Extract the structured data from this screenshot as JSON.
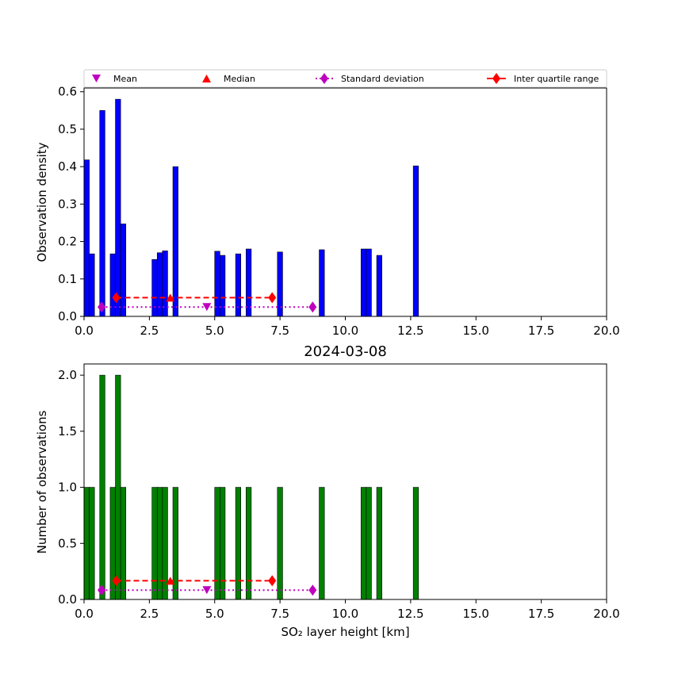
{
  "legend": [
    {
      "label": "Mean",
      "color": "#bf00bf",
      "marker": "triangle-down",
      "line": "none"
    },
    {
      "label": "Median",
      "color": "#ff0000",
      "marker": "triangle-up",
      "line": "none"
    },
    {
      "label": "Standard deviation",
      "color": "#bf00bf",
      "marker": "diamond",
      "line": "dotted"
    },
    {
      "label": "Inter quartile range",
      "color": "#ff0000",
      "marker": "diamond",
      "line": "solid"
    }
  ],
  "chart_data": [
    {
      "type": "bar",
      "title": "",
      "xlabel": "",
      "ylabel": "Observation density",
      "xlim": [
        0,
        20
      ],
      "ylim": [
        0,
        0.61
      ],
      "xticks": [
        "0.0",
        "2.5",
        "5.0",
        "7.5",
        "10.0",
        "12.5",
        "15.0",
        "17.5",
        "20.0"
      ],
      "yticks": [
        0,
        0.1,
        0.2,
        0.3,
        0.4,
        0.5,
        0.6
      ],
      "ytick_labels": [
        "0.0",
        "0.1",
        "0.2",
        "0.3",
        "0.4",
        "0.5",
        "0.6"
      ],
      "bar_color": "#0000ff",
      "bar_width": 0.2,
      "bars": [
        {
          "x": 0.1,
          "value": 0.418
        },
        {
          "x": 0.3,
          "value": 0.167
        },
        {
          "x": 0.7,
          "value": 0.55
        },
        {
          "x": 1.1,
          "value": 0.167
        },
        {
          "x": 1.3,
          "value": 0.58
        },
        {
          "x": 1.5,
          "value": 0.247
        },
        {
          "x": 2.7,
          "value": 0.152
        },
        {
          "x": 2.9,
          "value": 0.17
        },
        {
          "x": 3.1,
          "value": 0.175
        },
        {
          "x": 3.5,
          "value": 0.4
        },
        {
          "x": 5.1,
          "value": 0.174
        },
        {
          "x": 5.3,
          "value": 0.163
        },
        {
          "x": 5.9,
          "value": 0.167
        },
        {
          "x": 6.3,
          "value": 0.18
        },
        {
          "x": 7.5,
          "value": 0.172
        },
        {
          "x": 9.1,
          "value": 0.178
        },
        {
          "x": 10.7,
          "value": 0.18
        },
        {
          "x": 10.9,
          "value": 0.18
        },
        {
          "x": 11.3,
          "value": 0.163
        },
        {
          "x": 12.7,
          "value": 0.402
        }
      ],
      "stats": {
        "level_iqr": 0.05,
        "level_std": 0.025,
        "mean": 4.7,
        "median": 3.3,
        "std": [
          0.67,
          8.75
        ],
        "iqr": [
          1.23,
          7.2
        ]
      }
    },
    {
      "type": "bar",
      "title": "2024-03-08",
      "xlabel": "SO₂ layer height [km]",
      "ylabel": "Number of observations",
      "xlim": [
        0,
        20
      ],
      "ylim": [
        0,
        2.1
      ],
      "xticks": [
        "0.0",
        "2.5",
        "5.0",
        "7.5",
        "10.0",
        "12.5",
        "15.0",
        "17.5",
        "20.0"
      ],
      "yticks": [
        0,
        0.5,
        1.0,
        1.5,
        2.0
      ],
      "ytick_labels": [
        "0.0",
        "0.5",
        "1.0",
        "1.5",
        "2.0"
      ],
      "bar_color": "#008000",
      "bar_width": 0.2,
      "bars": [
        {
          "x": 0.1,
          "value": 1
        },
        {
          "x": 0.3,
          "value": 1
        },
        {
          "x": 0.7,
          "value": 2
        },
        {
          "x": 1.1,
          "value": 1
        },
        {
          "x": 1.3,
          "value": 2
        },
        {
          "x": 1.5,
          "value": 1
        },
        {
          "x": 2.7,
          "value": 1
        },
        {
          "x": 2.9,
          "value": 1
        },
        {
          "x": 3.1,
          "value": 1
        },
        {
          "x": 3.5,
          "value": 1
        },
        {
          "x": 5.1,
          "value": 1
        },
        {
          "x": 5.3,
          "value": 1
        },
        {
          "x": 5.9,
          "value": 1
        },
        {
          "x": 6.3,
          "value": 1
        },
        {
          "x": 7.5,
          "value": 1
        },
        {
          "x": 9.1,
          "value": 1
        },
        {
          "x": 10.7,
          "value": 1
        },
        {
          "x": 10.9,
          "value": 1
        },
        {
          "x": 11.3,
          "value": 1
        },
        {
          "x": 12.7,
          "value": 1
        }
      ],
      "stats": {
        "level_iqr": 0.167,
        "level_std": 0.083,
        "mean": 4.7,
        "median": 3.3,
        "std": [
          0.67,
          8.75
        ],
        "iqr": [
          1.23,
          7.2
        ]
      }
    }
  ]
}
